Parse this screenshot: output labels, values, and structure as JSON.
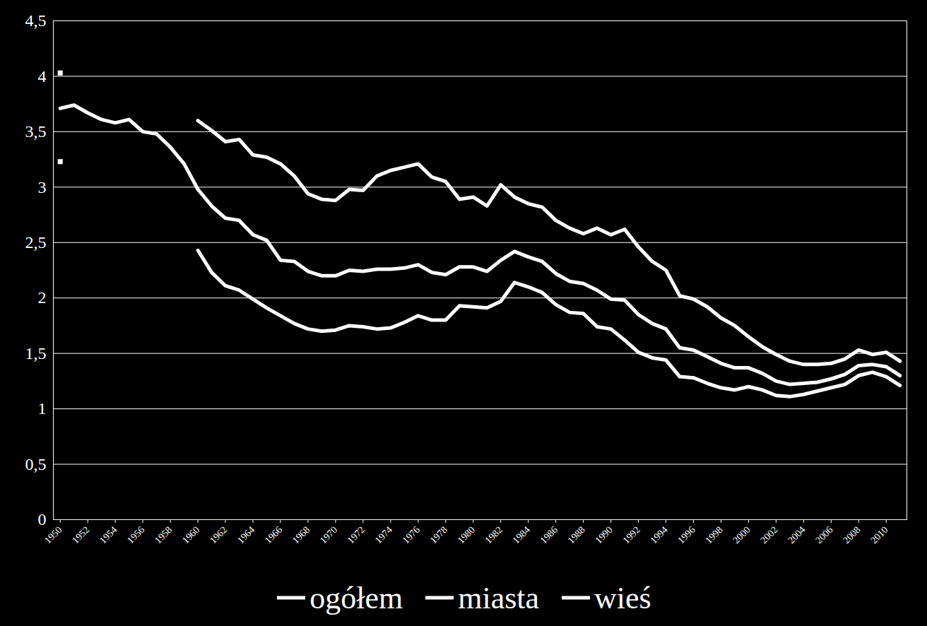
{
  "chart_data": {
    "type": "line",
    "x": [
      1950,
      1951,
      1952,
      1953,
      1954,
      1955,
      1956,
      1957,
      1958,
      1959,
      1960,
      1961,
      1962,
      1963,
      1964,
      1965,
      1966,
      1967,
      1968,
      1969,
      1970,
      1971,
      1972,
      1973,
      1974,
      1975,
      1976,
      1977,
      1978,
      1979,
      1980,
      1981,
      1982,
      1983,
      1984,
      1985,
      1986,
      1987,
      1988,
      1989,
      1990,
      1991,
      1992,
      1993,
      1994,
      1995,
      1996,
      1997,
      1998,
      1999,
      2000,
      2001,
      2002,
      2003,
      2004,
      2005,
      2006,
      2007,
      2008,
      2009,
      2010,
      2011
    ],
    "series": [
      {
        "name": "ogółem",
        "color": "#ffffff",
        "values": [
          3.71,
          3.74,
          3.67,
          3.61,
          3.58,
          3.61,
          3.5,
          3.48,
          3.36,
          3.21,
          2.98,
          2.83,
          2.72,
          2.7,
          2.57,
          2.52,
          2.34,
          2.33,
          2.24,
          2.2,
          2.2,
          2.25,
          2.24,
          2.26,
          2.26,
          2.27,
          2.3,
          2.23,
          2.21,
          2.28,
          2.28,
          2.24,
          2.34,
          2.42,
          2.37,
          2.33,
          2.22,
          2.15,
          2.13,
          2.07,
          1.99,
          1.98,
          1.85,
          1.77,
          1.72,
          1.55,
          1.53,
          1.47,
          1.41,
          1.37,
          1.37,
          1.32,
          1.25,
          1.22,
          1.23,
          1.24,
          1.27,
          1.31,
          1.39,
          1.4,
          1.38,
          1.3
        ]
      },
      {
        "name": "miasta",
        "color": "#ffffff",
        "values": [
          3.23,
          null,
          null,
          null,
          null,
          null,
          null,
          null,
          null,
          null,
          2.43,
          2.23,
          2.11,
          2.07,
          1.99,
          1.91,
          1.84,
          1.77,
          1.72,
          1.7,
          1.71,
          1.75,
          1.74,
          1.72,
          1.73,
          1.78,
          1.84,
          1.8,
          1.8,
          1.93,
          1.92,
          1.91,
          1.97,
          2.14,
          2.1,
          2.05,
          1.94,
          1.87,
          1.86,
          1.74,
          1.72,
          1.62,
          1.51,
          1.46,
          1.44,
          1.29,
          1.28,
          1.23,
          1.19,
          1.17,
          1.2,
          1.17,
          1.12,
          1.11,
          1.13,
          1.16,
          1.19,
          1.22,
          1.3,
          1.33,
          1.29,
          1.21
        ]
      },
      {
        "name": "wieś",
        "color": "#ffffff",
        "values": [
          4.03,
          null,
          null,
          null,
          null,
          null,
          null,
          null,
          null,
          null,
          3.6,
          3.51,
          3.41,
          3.43,
          3.29,
          3.27,
          3.21,
          3.1,
          2.94,
          2.89,
          2.88,
          2.98,
          2.97,
          3.1,
          3.15,
          3.18,
          3.21,
          3.09,
          3.05,
          2.89,
          2.91,
          2.83,
          3.02,
          2.91,
          2.85,
          2.82,
          2.7,
          2.63,
          2.58,
          2.63,
          2.57,
          2.62,
          2.46,
          2.33,
          2.25,
          2.02,
          1.99,
          1.92,
          1.82,
          1.75,
          1.65,
          1.56,
          1.49,
          1.43,
          1.4,
          1.4,
          1.41,
          1.45,
          1.53,
          1.49,
          1.51,
          1.43
        ]
      }
    ],
    "xlim": [
      1949.5,
      2011.5
    ],
    "xticks": [
      1950,
      1952,
      1954,
      1956,
      1958,
      1960,
      1962,
      1964,
      1966,
      1968,
      1970,
      1972,
      1974,
      1976,
      1978,
      1980,
      1982,
      1984,
      1986,
      1988,
      1990,
      1992,
      1994,
      1996,
      1998,
      2000,
      2002,
      2004,
      2006,
      2008,
      2010
    ],
    "ylim": [
      0,
      4.5
    ],
    "yticks": [
      0,
      {
        "value": 0.5,
        "label": "0,5"
      },
      1,
      {
        "value": 1.5,
        "label": "1,5"
      },
      2,
      {
        "value": 2.5,
        "label": "2,5"
      },
      3,
      {
        "value": 3.5,
        "label": "3,5"
      },
      4,
      {
        "value": 4.5,
        "label": "4,5"
      }
    ],
    "grid": true,
    "legend": "bottom"
  }
}
